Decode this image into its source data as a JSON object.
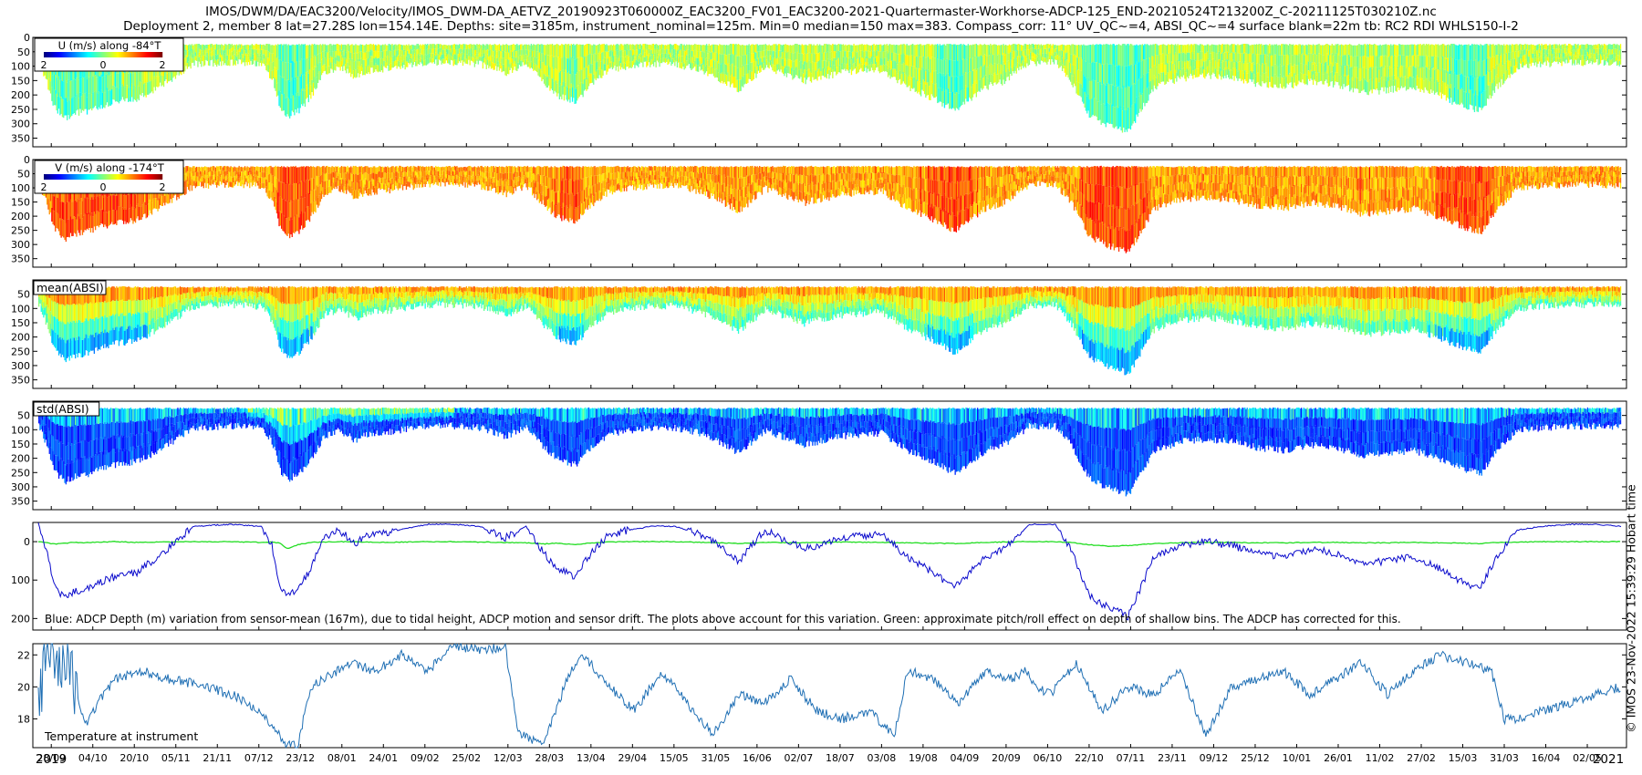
{
  "header": {
    "line1": "IMOS/DWM/DA/EAC3200/Velocity/IMOS_DWM-DA_AETVZ_20190923T060000Z_EAC3200_FV01_EAC3200-2021-Quartermaster-Workhorse-ADCP-125_END-20210524T213200Z_C-20211125T030210Z.nc",
    "line2": "Deployment 2, member 8 lat=27.28S lon=154.14E. Depths: site=3185m, instrument_nominal=125m. Min=0 median=150 max=383. Compass_corr: 11° UV_QC~=4, ABSI_QC~=4 surface blank=22m tb: RC2 RDI WHLS150-I-2"
  },
  "side_note": "© IMOS 23-Nov-2022 15:39:29 Hobart time",
  "colors": {
    "axis": "#000000",
    "adcp_depth": "#0a0acc",
    "pitch_roll": "#22dd22",
    "temperature": "#1f6fb4"
  },
  "chart_data": [
    {
      "type": "heatmap",
      "panel": "U",
      "colorbar_label": "U (m/s) along -84°T",
      "colorbar_ticks": [
        "2",
        "0",
        "2"
      ],
      "colormap": "jet",
      "yticks": [
        "0",
        "50",
        "100",
        "150",
        "200",
        "250",
        "300",
        "350"
      ],
      "ylim": [
        380,
        0
      ]
    },
    {
      "type": "heatmap",
      "panel": "V",
      "colorbar_label": "V (m/s) along -174°T",
      "colorbar_ticks": [
        "2",
        "0",
        "2"
      ],
      "colormap": "jet",
      "yticks": [
        "0",
        "50",
        "100",
        "150",
        "200",
        "250",
        "300",
        "350"
      ],
      "ylim": [
        380,
        0
      ]
    },
    {
      "type": "heatmap",
      "panel": "mean_absi",
      "label": "mean(ABSI)",
      "yticks": [
        "50",
        "100",
        "150",
        "200",
        "250",
        "300",
        "350"
      ],
      "ylim": [
        380,
        0
      ]
    },
    {
      "type": "heatmap",
      "panel": "std_absi",
      "label": "std(ABSI)",
      "yticks": [
        "50",
        "100",
        "150",
        "200",
        "250",
        "300",
        "350"
      ],
      "ylim": [
        380,
        0
      ]
    },
    {
      "type": "line",
      "panel": "adcp_depth",
      "yticks": [
        "0",
        "100",
        "200"
      ],
      "ylim": [
        230,
        -50
      ],
      "caption": "Blue: ADCP Depth (m) variation from sensor-mean (167m), due to tidal height, ADCP motion and sensor drift. The plots above account for this variation. Green: approximate pitch/roll effect on depth of shallow bins. The ADCP has corrected for this.",
      "x_days": [
        0,
        3,
        6,
        10,
        14,
        18,
        24,
        30,
        38,
        46,
        60,
        74,
        86,
        90,
        93,
        96,
        100,
        105,
        110,
        116,
        122,
        126,
        135,
        150,
        160,
        170,
        180,
        188,
        195,
        200,
        207,
        213,
        220,
        228,
        236,
        245,
        255,
        262,
        270,
        280,
        295,
        310,
        325,
        335,
        345,
        353,
        365,
        372,
        378,
        382,
        387,
        392,
        398,
        405,
        412,
        420,
        430,
        440,
        450,
        460,
        470,
        480,
        490,
        500,
        510,
        520,
        530,
        540,
        550,
        556,
        562,
        570,
        580,
        590,
        600,
        610
      ],
      "series": [
        {
          "name": "Blue",
          "values": [
            -50,
            20,
            110,
            150,
            130,
            125,
            105,
            90,
            80,
            40,
            -40,
            -45,
            -40,
            10,
            110,
            140,
            125,
            70,
            -10,
            -30,
            5,
            -15,
            -25,
            -45,
            -45,
            -40,
            -10,
            -40,
            30,
            70,
            90,
            30,
            -20,
            -30,
            -40,
            -40,
            -20,
            10,
            50,
            -30,
            20,
            -10,
            -20,
            40,
            80,
            120,
            40,
            20,
            -20,
            -45,
            -45,
            -45,
            20,
            140,
            170,
            195,
            40,
            10,
            0,
            10,
            30,
            40,
            20,
            30,
            60,
            50,
            40,
            70,
            110,
            120,
            40,
            -30,
            -40,
            -45,
            -45,
            -40
          ]
        },
        {
          "name": "Green",
          "values": [
            0,
            3,
            6,
            4,
            2,
            3,
            1,
            0,
            2,
            1,
            0,
            0,
            2,
            1,
            4,
            18,
            8,
            2,
            1,
            0,
            0,
            1,
            2,
            0,
            0,
            1,
            2,
            3,
            6,
            4,
            8,
            3,
            1,
            0,
            0,
            0,
            2,
            3,
            5,
            2,
            3,
            1,
            2,
            3,
            4,
            5,
            2,
            1,
            0,
            0,
            0,
            0,
            2,
            8,
            12,
            10,
            5,
            3,
            2,
            2,
            3,
            3,
            2,
            2,
            3,
            3,
            2,
            3,
            4,
            5,
            2,
            1,
            0,
            0,
            0,
            0
          ]
        }
      ]
    },
    {
      "type": "line",
      "panel": "temperature",
      "label": "Temperature at instrument",
      "yticks": [
        "18",
        "20",
        "22"
      ],
      "ylim": [
        16.2,
        22.7
      ],
      "x_days": [
        0,
        3,
        7,
        12,
        18,
        25,
        30,
        40,
        50,
        60,
        75,
        85,
        95,
        100,
        105,
        110,
        120,
        130,
        140,
        150,
        160,
        170,
        180,
        185,
        195,
        205,
        210,
        220,
        230,
        240,
        250,
        260,
        270,
        280,
        290,
        300,
        310,
        320,
        330,
        335,
        345,
        355,
        365,
        375,
        380,
        385,
        390,
        400,
        410,
        420,
        430,
        440,
        450,
        460,
        470,
        480,
        490,
        500,
        510,
        520,
        530,
        540,
        550,
        560,
        565,
        570,
        580,
        590,
        600,
        610
      ],
      "series": [
        {
          "name": "Temperature at instrument",
          "values": [
            18,
            22.5,
            22,
            21,
            17.5,
            19.5,
            20.5,
            21,
            20.5,
            20.2,
            19.5,
            18.5,
            16.5,
            16.3,
            20,
            20.5,
            21.5,
            21,
            22,
            21,
            22.6,
            22.3,
            22.5,
            17,
            16.5,
            21,
            22,
            20,
            18.5,
            21,
            19,
            17,
            19.5,
            19,
            20.5,
            18.5,
            18,
            18.5,
            17,
            21,
            20.5,
            19,
            21,
            20.5,
            21,
            20,
            19.5,
            21.5,
            18.5,
            20,
            19.5,
            21,
            17,
            20,
            20.5,
            21,
            19.5,
            20.5,
            21.5,
            19.5,
            21,
            22,
            21.5,
            21,
            18,
            18,
            18.5,
            19,
            19.5,
            20
          ]
        }
      ]
    }
  ],
  "x_axis": {
    "tick_labels": [
      "28/09",
      "04/10",
      "20/10",
      "05/11",
      "21/11",
      "07/12",
      "23/12",
      "08/01",
      "24/01",
      "09/02",
      "25/02",
      "12/03",
      "28/03",
      "13/04",
      "29/04",
      "15/05",
      "31/05",
      "16/06",
      "02/07",
      "18/07",
      "03/08",
      "19/08",
      "04/09",
      "20/09",
      "06/10",
      "22/10",
      "07/11",
      "23/11",
      "09/12",
      "25/12",
      "10/01",
      "26/01",
      "11/02",
      "27/02",
      "15/03",
      "31/03",
      "16/04",
      "02/05"
    ],
    "year_start": "2019",
    "year_end": "2021"
  }
}
